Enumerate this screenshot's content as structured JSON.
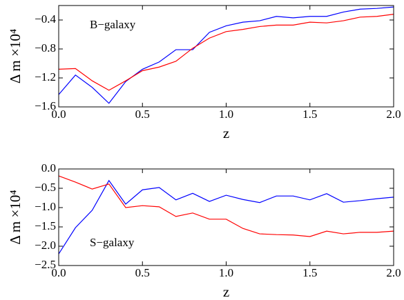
{
  "chart_data": [
    {
      "type": "line",
      "annotation": "B−galaxy",
      "xlabel": "z",
      "ylabel": "Δ m ×10⁴",
      "x": [
        0,
        0.1,
        0.2,
        0.3,
        0.4,
        0.5,
        0.6,
        0.7,
        0.8,
        0.9,
        1.0,
        1.1,
        1.2,
        1.3,
        1.4,
        1.5,
        1.6,
        1.7,
        1.8,
        1.9,
        2.0
      ],
      "series": [
        {
          "color": "#0000ff",
          "values": [
            -1.43,
            -1.16,
            -1.33,
            -1.55,
            -1.25,
            -1.08,
            -0.98,
            -0.81,
            -0.81,
            -0.57,
            -0.48,
            -0.43,
            -0.41,
            -0.35,
            -0.37,
            -0.35,
            -0.35,
            -0.29,
            -0.25,
            -0.24,
            -0.22
          ]
        },
        {
          "color": "#ff0000",
          "values": [
            -1.08,
            -1.07,
            -1.24,
            -1.37,
            -1.24,
            -1.1,
            -1.05,
            -0.97,
            -0.79,
            -0.65,
            -0.56,
            -0.53,
            -0.49,
            -0.47,
            -0.47,
            -0.43,
            -0.44,
            -0.41,
            -0.36,
            -0.35,
            -0.32
          ]
        }
      ],
      "xlim": [
        0,
        2
      ],
      "xticks": [
        {
          "value": 0,
          "label": "0.0"
        },
        {
          "value": 0.5,
          "label": "0.5"
        },
        {
          "value": 1,
          "label": "1.0"
        },
        {
          "value": 1.5,
          "label": "1.5"
        },
        {
          "value": 2,
          "label": "2.0"
        }
      ],
      "ylim": [
        -1.6,
        -0.2
      ],
      "yticks": [
        {
          "value": -1.6,
          "label": "−1.6"
        },
        {
          "value": -1.2,
          "label": "−1.2"
        },
        {
          "value": -0.8,
          "label": "−0.8"
        },
        {
          "value": -0.4,
          "label": "−0.4"
        }
      ]
    },
    {
      "type": "line",
      "annotation": "S−galaxy",
      "xlabel": "z",
      "ylabel": "Δ m ×10⁴",
      "x": [
        0,
        0.1,
        0.2,
        0.3,
        0.4,
        0.5,
        0.6,
        0.7,
        0.8,
        0.9,
        1.0,
        1.1,
        1.2,
        1.3,
        1.4,
        1.5,
        1.6,
        1.7,
        1.8,
        1.9,
        2.0
      ],
      "series": [
        {
          "color": "#0000ff",
          "values": [
            -2.2,
            -1.52,
            -1.07,
            -0.3,
            -0.91,
            -0.54,
            -0.48,
            -0.8,
            -0.63,
            -0.84,
            -0.68,
            -0.79,
            -0.87,
            -0.7,
            -0.7,
            -0.8,
            -0.64,
            -0.86,
            -0.82,
            -0.77,
            -0.73
          ]
        },
        {
          "color": "#ff0000",
          "values": [
            -0.18,
            -0.34,
            -0.52,
            -0.39,
            -1.0,
            -0.95,
            -0.98,
            -1.23,
            -1.14,
            -1.3,
            -1.3,
            -1.54,
            -1.68,
            -1.7,
            -1.71,
            -1.75,
            -1.61,
            -1.68,
            -1.64,
            -1.64,
            -1.61
          ]
        }
      ],
      "xlim": [
        0,
        2
      ],
      "xticks": [
        {
          "value": 0,
          "label": "0.0"
        },
        {
          "value": 0.5,
          "label": "0.5"
        },
        {
          "value": 1,
          "label": "1.0"
        },
        {
          "value": 1.5,
          "label": "1.5"
        },
        {
          "value": 2,
          "label": "2.0"
        }
      ],
      "ylim": [
        -2.5,
        0
      ],
      "yticks": [
        {
          "value": -2.5,
          "label": "−2.5"
        },
        {
          "value": -2,
          "label": "−2.0"
        },
        {
          "value": -1.5,
          "label": "−1.5"
        },
        {
          "value": -1,
          "label": "−1.0"
        },
        {
          "value": -0.5,
          "label": "−0.5"
        },
        {
          "value": 0,
          "label": "0.0"
        }
      ]
    }
  ]
}
